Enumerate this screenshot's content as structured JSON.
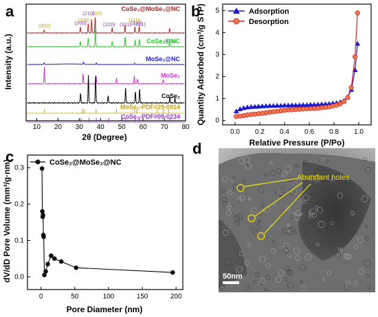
{
  "panels": {
    "a": "a",
    "b": "b",
    "c": "c",
    "d": "d"
  },
  "chart_data": [
    {
      "panel": "a",
      "type": "line",
      "xlabel": "2θ (Degree)",
      "ylabel": "Intensity (a.u.)",
      "xlim": [
        5,
        80
      ],
      "xticks": [
        10,
        20,
        30,
        40,
        50,
        60,
        70,
        80
      ],
      "series": [
        {
          "name": "CoSe2@MoSe2@NC",
          "color": "#b22222",
          "peaks": [
            [
              13.5,
              0.15
            ],
            [
              30.5,
              0.35
            ],
            [
              34.2,
              0.55
            ],
            [
              35.8,
              0.75
            ],
            [
              37.5,
              0.9
            ],
            [
              45.5,
              0.3
            ],
            [
              51.5,
              0.45
            ],
            [
              56.2,
              0.35
            ],
            [
              58.2,
              0.35
            ],
            [
              72.5,
              0.25
            ]
          ]
        },
        {
          "name": "CoSe2@NC",
          "color": "#22cc22",
          "peaks": [
            [
              30.5,
              0.35
            ],
            [
              34.2,
              0.55
            ],
            [
              37.6,
              0.95
            ],
            [
              45.5,
              0.35
            ],
            [
              51.6,
              0.6
            ],
            [
              56.3,
              0.45
            ],
            [
              58.3,
              0.45
            ],
            [
              72.5,
              0.25
            ]
          ]
        },
        {
          "name": "MoSe2@NC",
          "color": "#1a1acc",
          "peaks": [
            [
              13.5,
              0.25
            ],
            [
              32,
              0.35
            ],
            [
              38,
              0.25
            ],
            [
              56,
              0.2
            ]
          ]
        },
        {
          "name": "MoSe2",
          "color": "#cc33cc",
          "peaks": [
            [
              13.6,
              0.9
            ],
            [
              31.8,
              0.55
            ],
            [
              37.9,
              0.4
            ],
            [
              47.5,
              0.3
            ],
            [
              55.9,
              0.4
            ],
            [
              57.3,
              0.25
            ],
            [
              69.5,
              0.2
            ]
          ]
        },
        {
          "name": "CoSe2",
          "color": "#000000",
          "peaks": [
            [
              30.6,
              0.35
            ],
            [
              34.3,
              0.95
            ],
            [
              37.7,
              1.0
            ],
            [
              43.6,
              0.25
            ],
            [
              51.8,
              0.55
            ],
            [
              56.4,
              0.4
            ],
            [
              58.4,
              0.5
            ],
            [
              72.6,
              0.2
            ],
            [
              75,
              0.15
            ]
          ]
        }
      ],
      "reference_cards": [
        {
          "label": "MoSe₂-PDF#29-0914",
          "color": "#c8a000",
          "lines": [
            13.7,
            31.4,
            32.2,
            37.9,
            47.5,
            55.9,
            57.1,
            66.7,
            69.6,
            72.1
          ]
        },
        {
          "label": "CoSe₂-PDF#09-0234",
          "color": "#9933cc",
          "lines": [
            30.8,
            34.6,
            38.0,
            43.9,
            51.6,
            56.2,
            58.3,
            72.7
          ]
        }
      ],
      "labels": {
        "s1": "CoSe₂@MoSe₂@NC",
        "s2": "CoSe₂@NC",
        "s3": "MoSe₂@NC",
        "s4": "MoSe₂",
        "s5": "CoSe₂"
      },
      "annotations": [
        {
          "text": "(002)",
          "x": 13.7,
          "color": "#c8a000"
        },
        {
          "text": "(200)",
          "x": 30.6,
          "color": "#9933cc"
        },
        {
          "text": "(100)",
          "x": 32.2,
          "color": "#c8a000"
        },
        {
          "text": "(210)",
          "x": 34.4,
          "color": "#9933cc"
        },
        {
          "text": "(103)",
          "x": 37.8,
          "color": "#c8a000"
        },
        {
          "text": "(220)",
          "x": 44.0,
          "color": "#9933cc"
        },
        {
          "text": "(311)",
          "x": 51.7,
          "color": "#9933cc"
        },
        {
          "text": "(110)",
          "x": 56.0,
          "color": "#c8a000"
        },
        {
          "text": "(230)",
          "x": 56.8,
          "color": "#9933cc"
        },
        {
          "text": "(321)",
          "x": 58.4,
          "color": "#9933cc"
        },
        {
          "text": "(421)",
          "x": 72.6,
          "color": "#9933cc"
        }
      ]
    },
    {
      "panel": "b",
      "type": "line",
      "xlabel": "Relative Pressure (P/Po)",
      "ylabel": "Quantity Adsorbed (cm³/g STP)",
      "xlim": [
        -0.1,
        1.1
      ],
      "ylim": [
        -0.2,
        5.3
      ],
      "xticks": [
        0.0,
        0.2,
        0.4,
        0.6,
        0.8,
        1.0
      ],
      "yticks": [
        0,
        1,
        2,
        3,
        4,
        5
      ],
      "legend_position": "top-left",
      "series": [
        {
          "name": "Adsorption",
          "color": "#1a1acc",
          "marker": "triangle",
          "x": [
            0.01,
            0.04,
            0.07,
            0.1,
            0.13,
            0.16,
            0.19,
            0.22,
            0.25,
            0.28,
            0.31,
            0.34,
            0.37,
            0.4,
            0.43,
            0.46,
            0.49,
            0.52,
            0.55,
            0.58,
            0.61,
            0.64,
            0.67,
            0.7,
            0.73,
            0.76,
            0.79,
            0.82,
            0.85,
            0.88,
            0.91,
            0.94,
            0.97,
            0.99
          ],
          "y": [
            0.42,
            0.52,
            0.57,
            0.6,
            0.62,
            0.63,
            0.64,
            0.65,
            0.66,
            0.67,
            0.67,
            0.68,
            0.68,
            0.69,
            0.69,
            0.7,
            0.7,
            0.7,
            0.71,
            0.71,
            0.72,
            0.72,
            0.73,
            0.74,
            0.75,
            0.76,
            0.78,
            0.8,
            0.84,
            0.9,
            1.05,
            1.4,
            2.3,
            3.5
          ]
        },
        {
          "name": "Desorption",
          "color": "#cc2222",
          "marker": "circle",
          "x": [
            0.99,
            0.97,
            0.94,
            0.91,
            0.88,
            0.85,
            0.82,
            0.79,
            0.76,
            0.73,
            0.7,
            0.67,
            0.64,
            0.61,
            0.58,
            0.55,
            0.52,
            0.49,
            0.46,
            0.43,
            0.4,
            0.37,
            0.34,
            0.31,
            0.28,
            0.25,
            0.22,
            0.19,
            0.16,
            0.13,
            0.1,
            0.07,
            0.04,
            0.01
          ],
          "y": [
            4.9,
            2.9,
            1.5,
            1.05,
            0.86,
            0.76,
            0.7,
            0.66,
            0.62,
            0.6,
            0.58,
            0.56,
            0.55,
            0.54,
            0.53,
            0.52,
            0.51,
            0.5,
            0.49,
            0.48,
            0.46,
            0.44,
            0.42,
            0.4,
            0.38,
            0.35,
            0.33,
            0.31,
            0.29,
            0.27,
            0.25,
            0.22,
            0.2,
            0.18
          ]
        }
      ]
    },
    {
      "panel": "c",
      "type": "line",
      "xlabel": "Pore Diameter (nm)",
      "ylabel": "dV/dD Pore Volume (mm³/g·nm)",
      "xlim": [
        -20,
        210
      ],
      "ylim": [
        -0.035,
        0.335
      ],
      "xticks": [
        0,
        50,
        100,
        150,
        200
      ],
      "yticks": [
        0.0,
        0.1,
        0.2,
        0.3
      ],
      "legend_position": "top-left",
      "series": [
        {
          "name": "CoSe2@MoSe2@NC",
          "color": "#000000",
          "marker": "circle",
          "x": [
            1.5,
            2.0,
            2.5,
            3.0,
            3.5,
            4.0,
            5.0,
            7.0,
            10.0,
            15.0,
            20.0,
            30.0,
            52.0,
            195.0
          ],
          "y": [
            0.298,
            0.18,
            0.165,
            0.17,
            0.115,
            0.11,
            0.005,
            0.015,
            0.035,
            0.058,
            0.05,
            0.042,
            0.025,
            0.012
          ]
        }
      ],
      "legend_label": "CoSe₂@MoSe₂@NC"
    }
  ],
  "image_d": {
    "annotation": "Abundant holes",
    "scale_bar": "50nm",
    "annotation_color": "#f5e600"
  },
  "tick_labels": {
    "a_x": [
      "10",
      "20",
      "30",
      "40",
      "50",
      "60",
      "70",
      "80"
    ],
    "b_x": [
      "0.0",
      "0.2",
      "0.4",
      "0.6",
      "0.8",
      "1.0"
    ],
    "b_y": [
      "0",
      "1",
      "2",
      "3",
      "4",
      "5"
    ],
    "c_x": [
      "0",
      "50",
      "100",
      "150",
      "200"
    ],
    "c_y": [
      "0.0",
      "0.1",
      "0.2",
      "0.3"
    ]
  }
}
